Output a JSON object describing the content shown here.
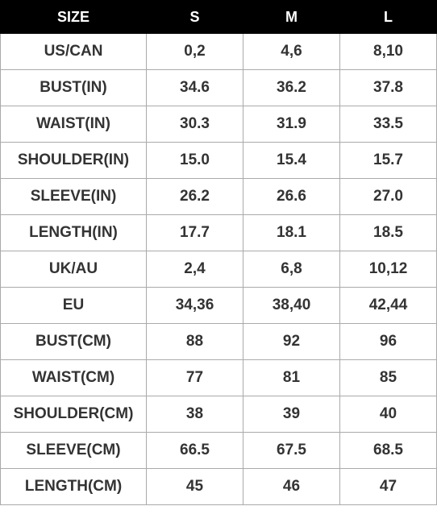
{
  "table": {
    "header": [
      "SIZE",
      "S",
      "M",
      "L"
    ],
    "rows": [
      [
        "US/CAN",
        "0,2",
        "4,6",
        "8,10"
      ],
      [
        "BUST(IN)",
        "34.6",
        "36.2",
        "37.8"
      ],
      [
        "WAIST(IN)",
        "30.3",
        "31.9",
        "33.5"
      ],
      [
        "SHOULDER(IN)",
        "15.0",
        "15.4",
        "15.7"
      ],
      [
        "SLEEVE(IN)",
        "26.2",
        "26.6",
        "27.0"
      ],
      [
        "LENGTH(IN)",
        "17.7",
        "18.1",
        "18.5"
      ],
      [
        "UK/AU",
        "2,4",
        "6,8",
        "10,12"
      ],
      [
        "EU",
        "34,36",
        "38,40",
        "42,44"
      ],
      [
        "BUST(CM)",
        "88",
        "92",
        "96"
      ],
      [
        "WAIST(CM)",
        "77",
        "81",
        "85"
      ],
      [
        "SHOULDER(CM)",
        "38",
        "39",
        "40"
      ],
      [
        "SLEEVE(CM)",
        "66.5",
        "67.5",
        "68.5"
      ],
      [
        "LENGTH(CM)",
        "45",
        "46",
        "47"
      ]
    ]
  }
}
